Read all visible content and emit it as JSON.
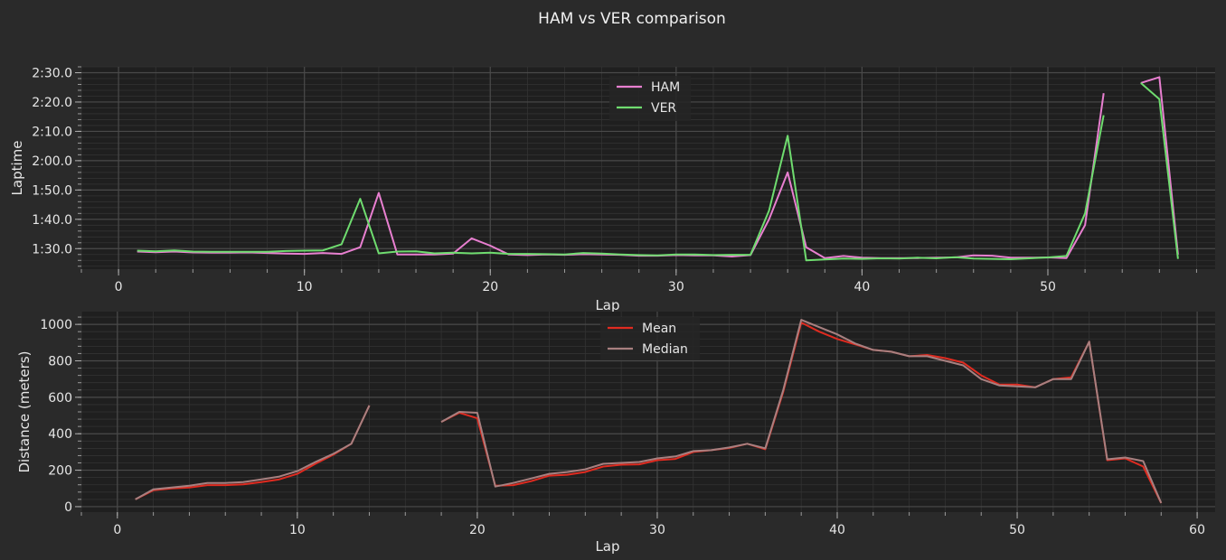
{
  "title": "HAM vs VER comparison",
  "colors": {
    "figure_bg": "#2a2a2a",
    "axes_bg": "#1f1f1f",
    "grid_major": "#4a4a4a",
    "grid_minor": "#333333",
    "ham": "#e87fd0",
    "ver": "#6fdc6f",
    "mean": "#e02b20",
    "median": "#a88080"
  },
  "chart_data": [
    {
      "type": "line",
      "title": "",
      "xlabel": "Lap",
      "ylabel": "Laptime",
      "xlim": [
        -2,
        59
      ],
      "ylim": [
        83,
        152
      ],
      "xticks": [
        0,
        10,
        20,
        30,
        40,
        50
      ],
      "yticks": [
        90,
        100,
        110,
        120,
        130,
        140,
        150
      ],
      "ytick_labels": [
        "1:30.0",
        "1:40.0",
        "1:50.0",
        "2:00.0",
        "2:10.0",
        "2:20.0",
        "2:30.0"
      ],
      "grid": true,
      "legend": "top-center",
      "series": [
        {
          "name": "HAM",
          "color": "#e87fd0",
          "x": [
            1,
            2,
            3,
            4,
            5,
            6,
            7,
            8,
            9,
            10,
            11,
            12,
            13,
            14,
            15,
            16,
            17,
            18,
            19,
            20,
            21,
            22,
            23,
            24,
            25,
            26,
            27,
            28,
            29,
            30,
            31,
            32,
            33,
            34,
            35,
            36,
            37,
            38,
            39,
            40,
            41,
            42,
            43,
            44,
            45,
            46,
            47,
            48,
            49,
            50,
            51,
            52,
            53,
            54,
            55,
            56,
            57
          ],
          "y": [
            89.0,
            88.8,
            89.0,
            88.7,
            88.6,
            88.6,
            88.7,
            88.5,
            88.3,
            88.2,
            88.5,
            88.2,
            90.5,
            109.0,
            88.0,
            88.0,
            88.0,
            88.3,
            93.5,
            91.0,
            88.0,
            87.8,
            88.0,
            87.9,
            88.1,
            88.0,
            87.9,
            87.6,
            87.6,
            87.8,
            87.7,
            87.7,
            87.3,
            87.8,
            100.0,
            116.0,
            90.5,
            86.8,
            87.5,
            86.9,
            86.8,
            86.8,
            86.8,
            86.9,
            87.0,
            87.7,
            87.6,
            86.9,
            86.9,
            87.0,
            86.8,
            98.0,
            143.0,
            null,
            146.5,
            148.5,
            88.0
          ]
        },
        {
          "name": "VER",
          "color": "#6fdc6f",
          "x": [
            1,
            2,
            3,
            4,
            5,
            6,
            7,
            8,
            9,
            10,
            11,
            12,
            13,
            14,
            15,
            16,
            17,
            18,
            19,
            20,
            21,
            22,
            23,
            24,
            25,
            26,
            27,
            28,
            29,
            30,
            31,
            32,
            33,
            34,
            35,
            36,
            37,
            38,
            39,
            40,
            41,
            42,
            43,
            44,
            45,
            46,
            47,
            48,
            49,
            50,
            51,
            52,
            53,
            54,
            55,
            56,
            57
          ],
          "y": [
            89.3,
            89.1,
            89.4,
            89.0,
            88.9,
            88.9,
            88.9,
            88.9,
            89.2,
            89.3,
            89.4,
            91.5,
            107.0,
            88.4,
            89.0,
            89.1,
            88.4,
            88.6,
            88.4,
            88.6,
            88.2,
            88.2,
            88.1,
            88.0,
            88.5,
            88.3,
            88.0,
            87.8,
            87.7,
            88.0,
            88.0,
            87.8,
            87.9,
            87.9,
            103.0,
            128.5,
            86.0,
            86.3,
            86.6,
            86.5,
            86.7,
            86.6,
            86.9,
            86.7,
            87.1,
            86.6,
            86.5,
            86.4,
            86.7,
            87.0,
            87.5,
            102.0,
            135.5,
            null,
            146.5,
            141.0,
            86.5
          ]
        }
      ]
    },
    {
      "type": "line",
      "title": "",
      "xlabel": "Lap",
      "ylabel": "Distance (meters)",
      "xlim": [
        -2,
        61
      ],
      "ylim": [
        -30,
        1070
      ],
      "xticks": [
        0,
        10,
        20,
        30,
        40,
        50,
        60
      ],
      "yticks": [
        0,
        200,
        400,
        600,
        800,
        1000
      ],
      "grid": true,
      "legend": "top-center",
      "series": [
        {
          "name": "Mean",
          "color": "#e02b20",
          "x": [
            1,
            2,
            3,
            4,
            5,
            6,
            7,
            8,
            9,
            10,
            11,
            12,
            13,
            14,
            15,
            16,
            17,
            18,
            19,
            20,
            21,
            22,
            23,
            24,
            25,
            26,
            27,
            28,
            29,
            30,
            31,
            32,
            33,
            34,
            35,
            36,
            37,
            38,
            39,
            40,
            41,
            42,
            43,
            44,
            45,
            46,
            47,
            48,
            49,
            50,
            51,
            52,
            53,
            54,
            55,
            56,
            57,
            58
          ],
          "y": [
            40,
            90,
            100,
            105,
            118,
            118,
            122,
            135,
            150,
            180,
            235,
            285,
            345,
            555,
            null,
            null,
            null,
            465,
            515,
            485,
            115,
            118,
            140,
            170,
            175,
            190,
            220,
            230,
            232,
            255,
            262,
            300,
            310,
            322,
            345,
            315,
            630,
            1010,
            960,
            920,
            890,
            860,
            850,
            825,
            832,
            815,
            790,
            720,
            670,
            670,
            655,
            700,
            710,
            905,
            255,
            265,
            220,
            20
          ]
        },
        {
          "name": "Median",
          "color": "#a88080",
          "x": [
            1,
            2,
            3,
            4,
            5,
            6,
            7,
            8,
            9,
            10,
            11,
            12,
            13,
            14,
            15,
            16,
            17,
            18,
            19,
            20,
            21,
            22,
            23,
            24,
            25,
            26,
            27,
            28,
            29,
            30,
            31,
            32,
            33,
            34,
            35,
            36,
            37,
            38,
            39,
            40,
            41,
            42,
            43,
            44,
            45,
            46,
            47,
            48,
            49,
            50,
            51,
            52,
            53,
            54,
            55,
            56,
            57,
            58
          ],
          "y": [
            40,
            95,
            105,
            115,
            130,
            130,
            135,
            150,
            165,
            195,
            245,
            290,
            345,
            555,
            null,
            null,
            null,
            465,
            520,
            515,
            110,
            130,
            155,
            180,
            190,
            205,
            235,
            240,
            245,
            265,
            275,
            305,
            310,
            325,
            345,
            320,
            640,
            1025,
            985,
            945,
            895,
            860,
            850,
            825,
            825,
            800,
            775,
            700,
            665,
            660,
            655,
            700,
            700,
            905,
            260,
            270,
            250,
            20
          ]
        }
      ]
    }
  ]
}
